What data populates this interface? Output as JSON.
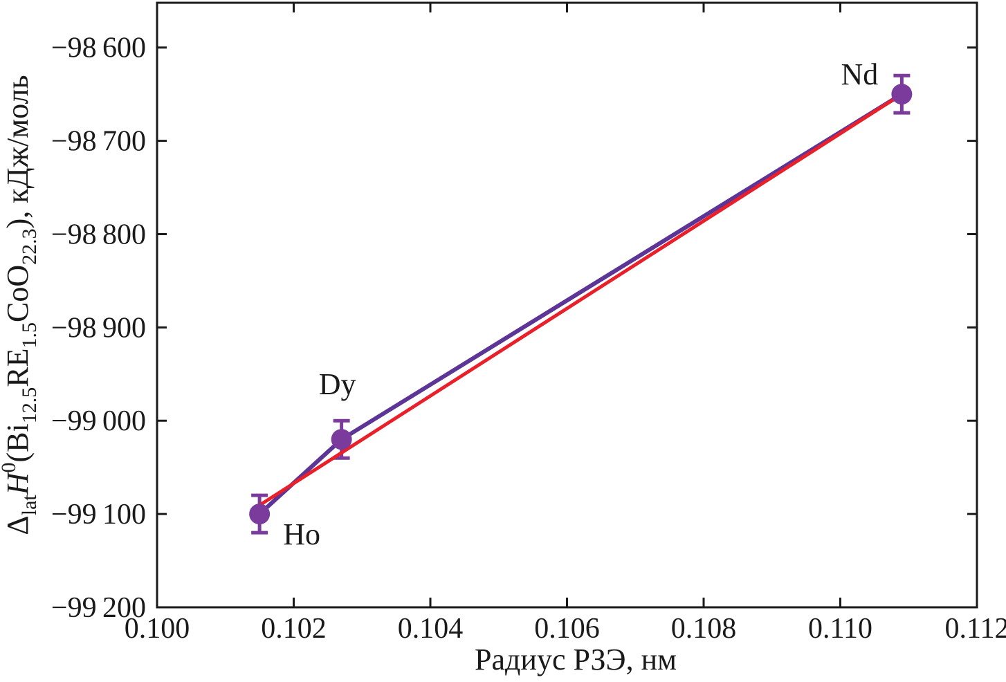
{
  "chart_data": {
    "type": "scatter",
    "title": "",
    "xlabel": "Радиус РЗЭ, нм",
    "ylabel_plain": "ΔlatH0(Bi12.5RE1.5CoO22.3), кДж/моль",
    "ylabel_segments": [
      {
        "t": "Δ",
        "m": "n"
      },
      {
        "t": "lat",
        "m": "sub"
      },
      {
        "t": "H",
        "m": "i"
      },
      {
        "t": "0",
        "m": "sup"
      },
      {
        "t": "(Bi",
        "m": "n"
      },
      {
        "t": "12.5",
        "m": "sub"
      },
      {
        "t": "RE",
        "m": "n"
      },
      {
        "t": "1.5",
        "m": "sub"
      },
      {
        "t": "CoO",
        "m": "n"
      },
      {
        "t": "22.3",
        "m": "sub"
      },
      {
        "t": "), кДж/моль",
        "m": "n"
      }
    ],
    "x_range": [
      0.1,
      0.112
    ],
    "y_range": [
      -99200,
      -98552
    ],
    "grid": false,
    "frame": true,
    "legend": "none",
    "x_ticks": [
      {
        "value": 0.1,
        "label": "0.100"
      },
      {
        "value": 0.102,
        "label": "0.102"
      },
      {
        "value": 0.104,
        "label": "0.104"
      },
      {
        "value": 0.106,
        "label": "0.106"
      },
      {
        "value": 0.108,
        "label": "0.108"
      },
      {
        "value": 0.11,
        "label": "0.110"
      },
      {
        "value": 0.112,
        "label": "0.112"
      }
    ],
    "y_ticks": [
      {
        "value": -98600,
        "label": "−98 600"
      },
      {
        "value": -98700,
        "label": "−98 700"
      },
      {
        "value": -98800,
        "label": "−98 800"
      },
      {
        "value": -98900,
        "label": "−98 900"
      },
      {
        "value": -99000,
        "label": "−99 000"
      },
      {
        "value": -99100,
        "label": "−99 100"
      },
      {
        "value": -99200,
        "label": "−99 200"
      }
    ],
    "series": [
      {
        "name": "experimental-points",
        "style": "scatter+line",
        "points": [
          {
            "label": "Ho",
            "x": 0.1015,
            "y": -99100,
            "yerr": 20,
            "label_dx": 61,
            "label_dy": 44
          },
          {
            "label": "Dy",
            "x": 0.1027,
            "y": -99020,
            "yerr": 20,
            "label_dx": -6,
            "label_dy": -65
          },
          {
            "label": "Nd",
            "x": 0.1109,
            "y": -98650,
            "yerr": 20,
            "label_dx": -61,
            "label_dy": -14
          }
        ]
      },
      {
        "name": "linear-fit",
        "style": "line",
        "x": [
          0.10147,
          0.1109
        ],
        "y": [
          -99092,
          -98650
        ]
      }
    ],
    "colors": {
      "marker": "#7A3B9D",
      "error_bar": "#7A3B9D",
      "connector": "#5C3597",
      "fit": "#E9202A",
      "axis": "#1A1A1A",
      "text": "#1A1A1A",
      "background": "#FFFFFF"
    }
  }
}
